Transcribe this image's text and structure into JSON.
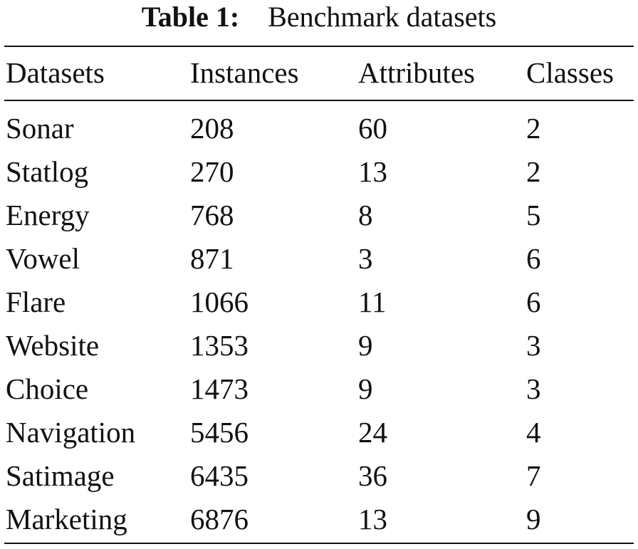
{
  "caption": {
    "label": "Table 1:",
    "title": "Benchmark datasets"
  },
  "table": {
    "headers": [
      "Datasets",
      "Instances",
      "Attributes",
      "Classes"
    ],
    "rows": [
      [
        "Sonar",
        "208",
        "60",
        "2"
      ],
      [
        "Statlog",
        "270",
        "13",
        "2"
      ],
      [
        "Energy",
        "768",
        "8",
        "5"
      ],
      [
        "Vowel",
        "871",
        "3",
        "6"
      ],
      [
        "Flare",
        "1066",
        "11",
        "6"
      ],
      [
        "Website",
        "1353",
        "9",
        "3"
      ],
      [
        "Choice",
        "1473",
        "9",
        "3"
      ],
      [
        "Navigation",
        "5456",
        "24",
        "4"
      ],
      [
        "Satimage",
        "6435",
        "36",
        "7"
      ],
      [
        "Marketing",
        "6876",
        "13",
        "9"
      ]
    ]
  }
}
